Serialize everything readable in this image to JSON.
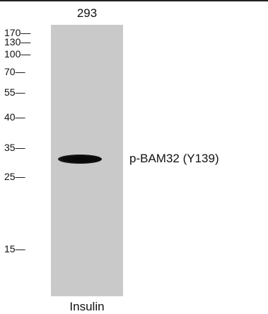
{
  "sample": {
    "lane_label": "293"
  },
  "markers": [
    {
      "label": "170—"
    },
    {
      "label": "130—"
    },
    {
      "label": "100—"
    },
    {
      "label": "70—"
    },
    {
      "label": "55—"
    },
    {
      "label": "40—"
    },
    {
      "label": "35—"
    },
    {
      "label": "25—"
    },
    {
      "label": "15—"
    }
  ],
  "band": {
    "label": "p-BAM32 (Y139)"
  },
  "treatment": {
    "label": "Insulin"
  },
  "colors": {
    "lane": "#c9c9c9",
    "band": "#0a0a0a",
    "background": "#ffffff"
  }
}
